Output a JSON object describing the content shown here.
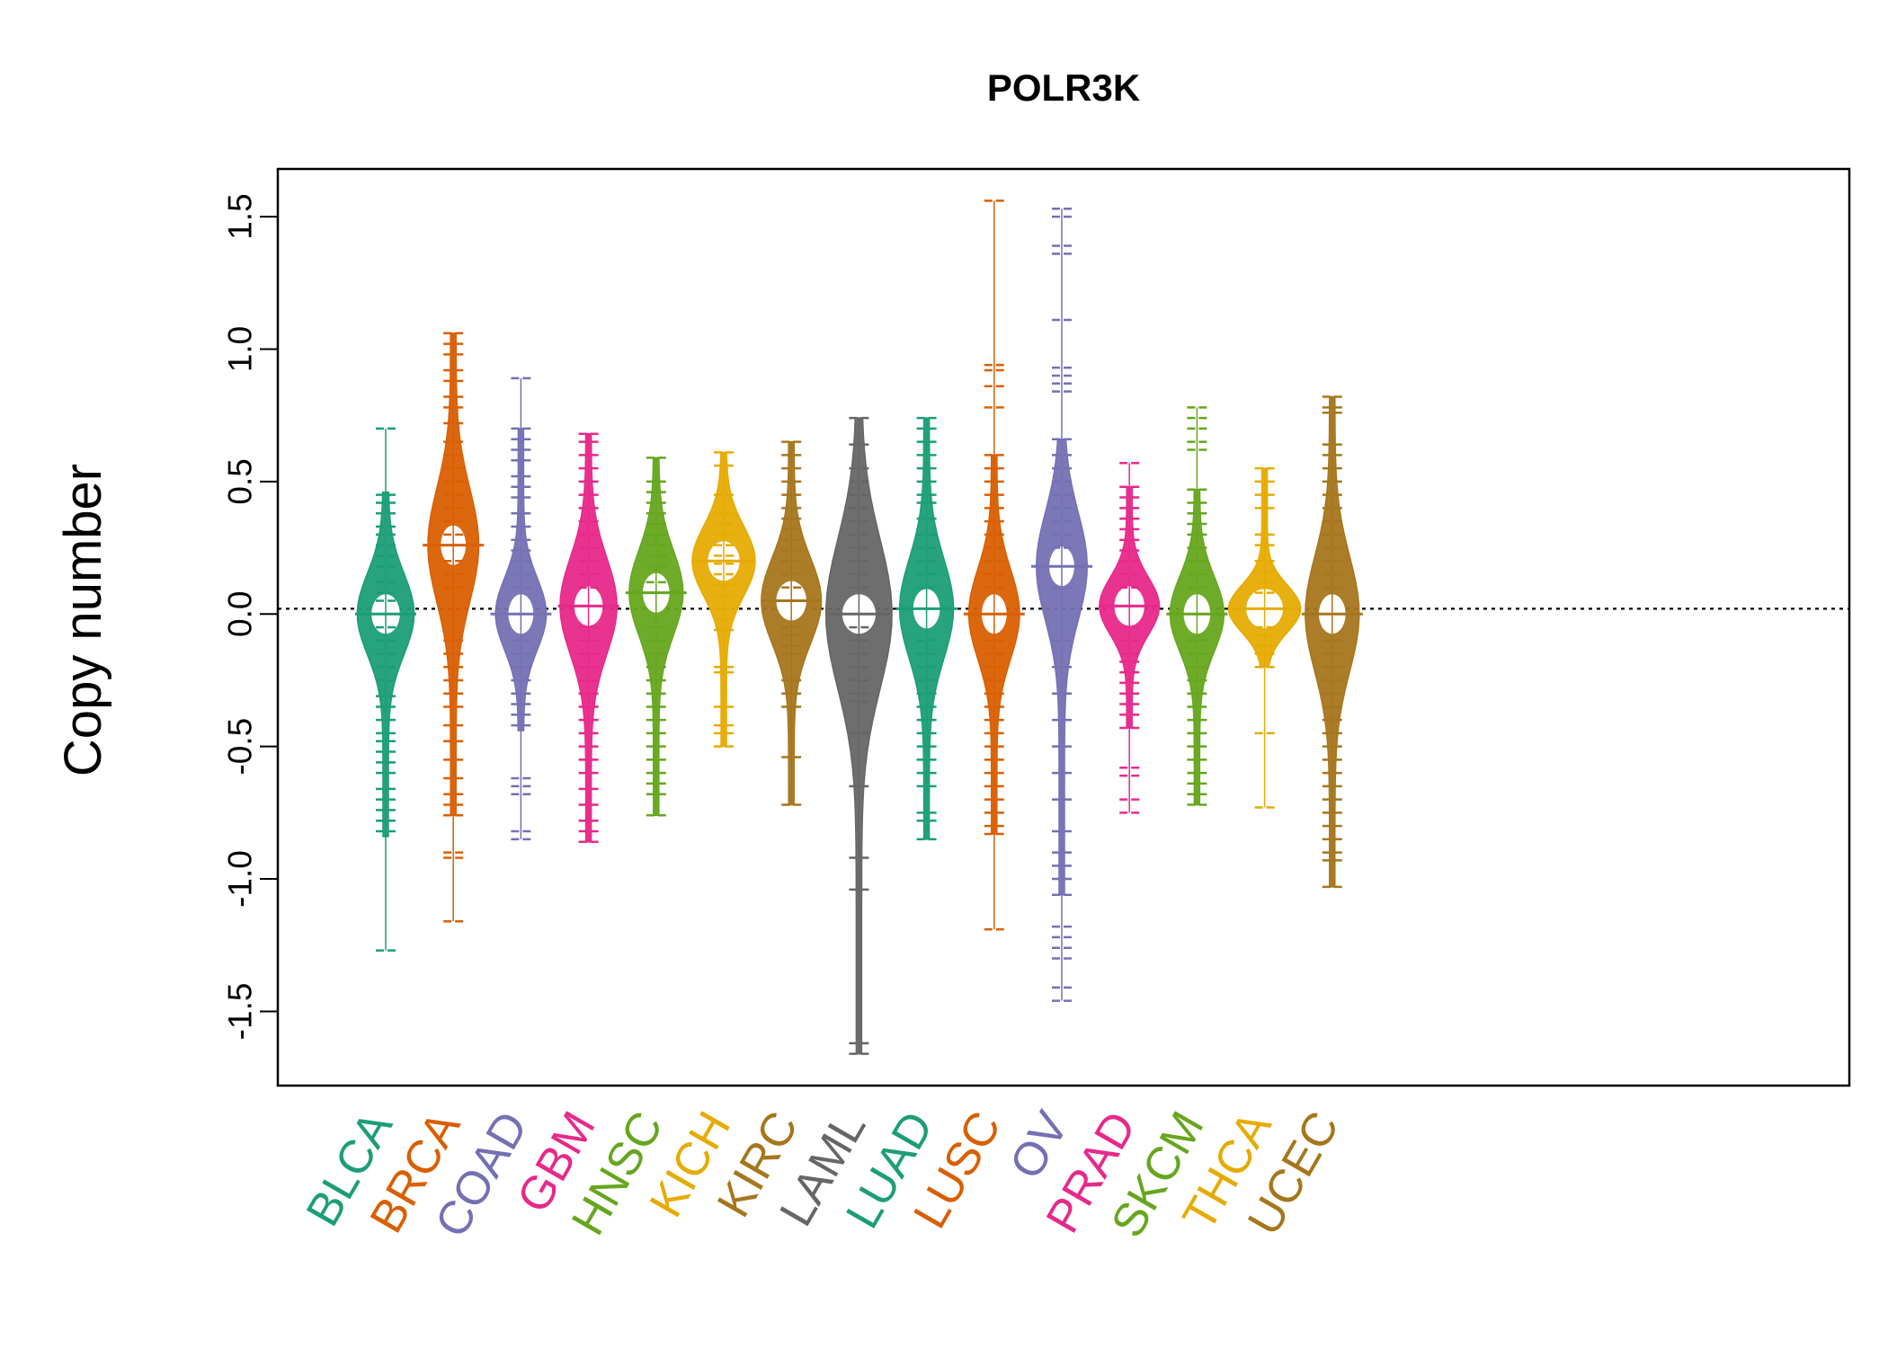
{
  "chart_data": {
    "type": "beanplot",
    "title": "POLR3K",
    "xlabel": "",
    "ylabel": "Copy number",
    "ylim": [
      -1.78,
      1.68
    ],
    "y_ticks": [
      -1.5,
      -1.0,
      -0.5,
      0.0,
      0.5,
      1.0,
      1.5
    ],
    "y_tick_labels": [
      "-1.5",
      "-1.0",
      "-0.5",
      "0.0",
      "0.5",
      "1.0",
      "1.5"
    ],
    "reference_line": 0.02,
    "categories": [
      {
        "name": "BLCA",
        "color": "#1B9E77",
        "median": 0.0,
        "density_spread": 0.55,
        "range": [
          -0.84,
          0.46
        ],
        "values": [
          0.7,
          0.45,
          0.42,
          0.38,
          0.33,
          0.3,
          0.26,
          0.22,
          0.18,
          0.12,
          0.08,
          0.05,
          -0.05,
          -0.1,
          -0.15,
          -0.2,
          -0.25,
          -0.31,
          -0.35,
          -0.4,
          -0.45,
          -0.48,
          -0.52,
          -0.56,
          -0.6,
          -0.66,
          -0.7,
          -0.74,
          -0.78,
          -0.82,
          -1.27
        ]
      },
      {
        "name": "BRCA",
        "color": "#D95F02",
        "median": 0.26,
        "density_spread": 0.45,
        "range": [
          -0.76,
          1.06
        ],
        "values": [
          1.06,
          1.02,
          0.98,
          0.92,
          0.88,
          0.82,
          0.78,
          0.72,
          0.65,
          0.6,
          0.55,
          0.5,
          0.45,
          0.4,
          0.35,
          0.3,
          0.26,
          0.2,
          0.15,
          0.1,
          -0.1,
          -0.15,
          -0.2,
          -0.25,
          -0.3,
          -0.35,
          -0.42,
          -0.48,
          -0.55,
          -0.62,
          -0.68,
          -0.72,
          -0.76,
          -0.9,
          -0.92,
          -1.16
        ]
      },
      {
        "name": "COAD",
        "color": "#7570B3",
        "median": 0.0,
        "density_spread": 0.45,
        "range": [
          -0.44,
          0.7
        ],
        "values": [
          0.89,
          0.7,
          0.66,
          0.62,
          0.58,
          0.52,
          0.48,
          0.44,
          0.38,
          0.33,
          0.28,
          0.24,
          0.2,
          0.15,
          0.1,
          -0.1,
          -0.15,
          -0.2,
          -0.25,
          -0.3,
          -0.34,
          -0.38,
          -0.42,
          -0.62,
          -0.65,
          -0.68,
          -0.82,
          -0.85
        ]
      },
      {
        "name": "GBM",
        "color": "#E7298A",
        "median": 0.03,
        "density_spread": 0.55,
        "range": [
          -0.86,
          0.68
        ],
        "values": [
          0.68,
          0.65,
          0.6,
          0.55,
          0.5,
          0.45,
          0.4,
          0.35,
          0.3,
          0.25,
          0.2,
          0.15,
          0.1,
          -0.05,
          -0.1,
          -0.15,
          -0.2,
          -0.25,
          -0.3,
          -0.35,
          -0.4,
          -0.45,
          -0.5,
          -0.55,
          -0.6,
          -0.66,
          -0.72,
          -0.78,
          -0.82,
          -0.86
        ]
      },
      {
        "name": "HNSC",
        "color": "#66A61E",
        "median": 0.08,
        "density_spread": 0.5,
        "range": [
          -0.76,
          0.59
        ],
        "values": [
          0.59,
          0.5,
          0.46,
          0.42,
          0.38,
          0.34,
          0.3,
          0.26,
          0.22,
          0.18,
          0.12,
          0.08,
          -0.05,
          -0.1,
          -0.15,
          -0.2,
          -0.25,
          -0.3,
          -0.35,
          -0.4,
          -0.45,
          -0.5,
          -0.55,
          -0.6,
          -0.64,
          -0.68,
          -0.76
        ]
      },
      {
        "name": "KICH",
        "color": "#E6AB02",
        "median": 0.2,
        "density_spread": 0.65,
        "range": [
          -0.5,
          0.61
        ],
        "values": [
          0.61,
          0.56,
          0.45,
          0.38,
          0.34,
          0.3,
          0.26,
          0.22,
          0.19,
          0.15,
          0.11,
          0.07,
          0.02,
          -0.02,
          -0.06,
          -0.2,
          -0.22,
          -0.35,
          -0.42,
          -0.45,
          -0.5
        ]
      },
      {
        "name": "KIRC",
        "color": "#A6761D",
        "median": 0.05,
        "density_spread": 0.6,
        "range": [
          -0.72,
          0.65
        ],
        "values": [
          0.65,
          0.6,
          0.55,
          0.5,
          0.45,
          0.4,
          0.36,
          0.32,
          0.28,
          0.24,
          0.2,
          0.15,
          0.1,
          -0.05,
          -0.08,
          -0.12,
          -0.15,
          -0.25,
          -0.3,
          -0.35,
          -0.54,
          -0.72
        ]
      },
      {
        "name": "LAML",
        "color": "#666666",
        "median": 0.0,
        "density_spread": 0.7,
        "range": [
          -1.66,
          0.74
        ],
        "values": [
          0.74,
          0.64,
          0.55,
          0.5,
          0.45,
          0.4,
          0.35,
          0.3,
          0.25,
          0.2,
          0.15,
          0.1,
          -0.05,
          -0.1,
          -0.15,
          -0.2,
          -0.25,
          -0.3,
          -0.33,
          -0.45,
          -0.65,
          -0.92,
          -1.04,
          -1.62,
          -1.66
        ]
      },
      {
        "name": "LUAD",
        "color": "#1B9E77",
        "median": 0.02,
        "density_spread": 0.5,
        "range": [
          -0.85,
          0.74
        ],
        "values": [
          0.74,
          0.7,
          0.65,
          0.6,
          0.55,
          0.5,
          0.45,
          0.42,
          0.36,
          0.3,
          0.25,
          0.2,
          0.15,
          0.1,
          -0.1,
          -0.15,
          -0.2,
          -0.25,
          -0.3,
          -0.35,
          -0.4,
          -0.45,
          -0.5,
          -0.55,
          -0.6,
          -0.65,
          -0.75,
          -0.78,
          -0.85
        ]
      },
      {
        "name": "LUSC",
        "color": "#D95F02",
        "median": 0.0,
        "density_spread": 0.45,
        "range": [
          -0.83,
          0.6
        ],
        "values": [
          1.56,
          0.94,
          0.92,
          0.86,
          0.78,
          0.6,
          0.55,
          0.5,
          0.45,
          0.4,
          0.35,
          0.3,
          0.25,
          0.2,
          0.15,
          0.1,
          -0.1,
          -0.15,
          -0.2,
          -0.25,
          -0.3,
          -0.35,
          -0.4,
          -0.45,
          -0.5,
          -0.55,
          -0.6,
          -0.65,
          -0.7,
          -0.75,
          -0.8,
          -0.83,
          -1.19
        ]
      },
      {
        "name": "OV",
        "color": "#7570B3",
        "median": 0.18,
        "density_spread": 0.45,
        "range": [
          -1.06,
          0.66
        ],
        "values": [
          1.53,
          1.5,
          1.39,
          1.36,
          1.11,
          0.93,
          0.9,
          0.87,
          0.84,
          0.66,
          0.6,
          0.55,
          0.5,
          0.45,
          0.4,
          0.35,
          0.3,
          0.25,
          0.18,
          0.1,
          -0.1,
          -0.2,
          -0.3,
          -0.4,
          -0.5,
          -0.6,
          -0.7,
          -0.82,
          -0.9,
          -0.95,
          -1.0,
          -1.06,
          -1.18,
          -1.22,
          -1.26,
          -1.3,
          -1.41,
          -1.46
        ]
      },
      {
        "name": "PRAD",
        "color": "#E7298A",
        "median": 0.03,
        "density_spread": 0.6,
        "range": [
          -0.43,
          0.48
        ],
        "values": [
          0.57,
          0.48,
          0.44,
          0.4,
          0.36,
          0.32,
          0.28,
          0.24,
          0.2,
          0.15,
          0.1,
          -0.05,
          -0.1,
          -0.15,
          -0.18,
          -0.22,
          -0.26,
          -0.3,
          -0.34,
          -0.38,
          -0.43,
          -0.58,
          -0.61,
          -0.7,
          -0.75
        ]
      },
      {
        "name": "SKCM",
        "color": "#66A61E",
        "median": 0.0,
        "density_spread": 0.5,
        "range": [
          -0.72,
          0.47
        ],
        "values": [
          0.78,
          0.74,
          0.7,
          0.65,
          0.62,
          0.47,
          0.42,
          0.38,
          0.34,
          0.3,
          0.25,
          0.2,
          0.15,
          0.1,
          -0.1,
          -0.15,
          -0.2,
          -0.25,
          -0.3,
          -0.35,
          -0.4,
          -0.45,
          -0.5,
          -0.55,
          -0.6,
          -0.64,
          -0.68,
          -0.72
        ]
      },
      {
        "name": "THCA",
        "color": "#E6AB02",
        "median": 0.02,
        "density_spread": 0.8,
        "range": [
          -0.2,
          0.55
        ],
        "values": [
          0.55,
          0.5,
          0.45,
          0.4,
          0.3,
          0.26,
          0.2,
          0.16,
          0.12,
          0.08,
          -0.05,
          -0.08,
          -0.12,
          -0.15,
          -0.2,
          -0.45,
          -0.73
        ]
      },
      {
        "name": "UCEC",
        "color": "#A6761D",
        "median": 0.0,
        "density_spread": 0.5,
        "range": [
          -1.03,
          0.82
        ],
        "values": [
          0.82,
          0.78,
          0.76,
          0.64,
          0.6,
          0.55,
          0.5,
          0.45,
          0.4,
          0.35,
          0.3,
          0.25,
          0.2,
          0.15,
          0.1,
          -0.1,
          -0.15,
          -0.2,
          -0.25,
          -0.3,
          -0.35,
          -0.4,
          -0.45,
          -0.5,
          -0.55,
          -0.6,
          -0.65,
          -0.7,
          -0.75,
          -0.8,
          -0.85,
          -0.9,
          -0.93,
          -1.03
        ]
      }
    ]
  }
}
